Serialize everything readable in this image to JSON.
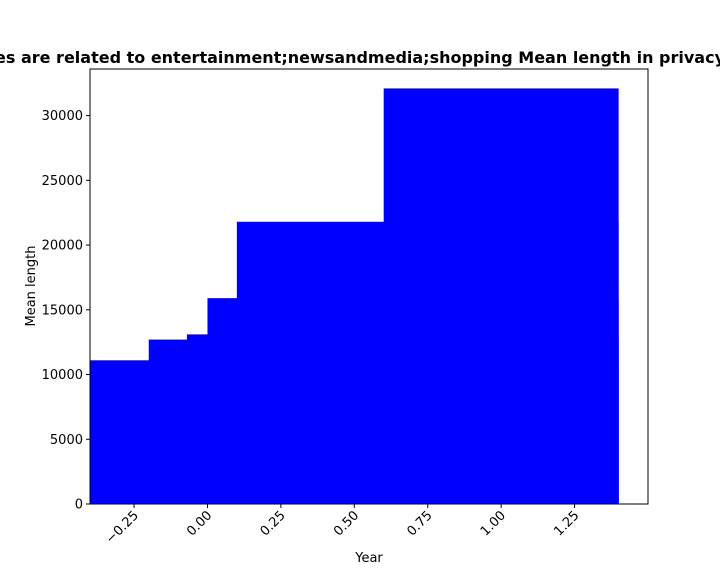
{
  "chart_data": {
    "type": "bar",
    "title": "es are related to entertainment;newsandmedia;shopping Mean length in privacy",
    "xlabel": "Year",
    "ylabel": "Mean length",
    "bar_color": "#0000ff",
    "xlim": [
      -0.4,
      1.5
    ],
    "ylim": [
      0,
      33600
    ],
    "x_ticks": [
      -0.25,
      0.0,
      0.25,
      0.5,
      0.75,
      1.0,
      1.25
    ],
    "x_tick_labels": [
      "−0.25",
      "0.00",
      "0.25",
      "0.50",
      "0.75",
      "1.00",
      "1.25"
    ],
    "y_ticks": [
      0,
      5000,
      10000,
      15000,
      20000,
      25000,
      30000
    ],
    "y_tick_labels": [
      "0",
      "5000",
      "10000",
      "15000",
      "20000",
      "25000",
      "30000"
    ],
    "bars": [
      {
        "x_start": -0.4,
        "x_end": 1.4,
        "value": 11100
      },
      {
        "x_start": -0.2,
        "x_end": 1.4,
        "value": 12700
      },
      {
        "x_start": -0.07,
        "x_end": 1.4,
        "value": 13100
      },
      {
        "x_start": 0.0,
        "x_end": 1.4,
        "value": 15900
      },
      {
        "x_start": 0.1,
        "x_end": 1.4,
        "value": 21800
      },
      {
        "x_start": 0.6,
        "x_end": 1.4,
        "value": 32100
      }
    ]
  }
}
